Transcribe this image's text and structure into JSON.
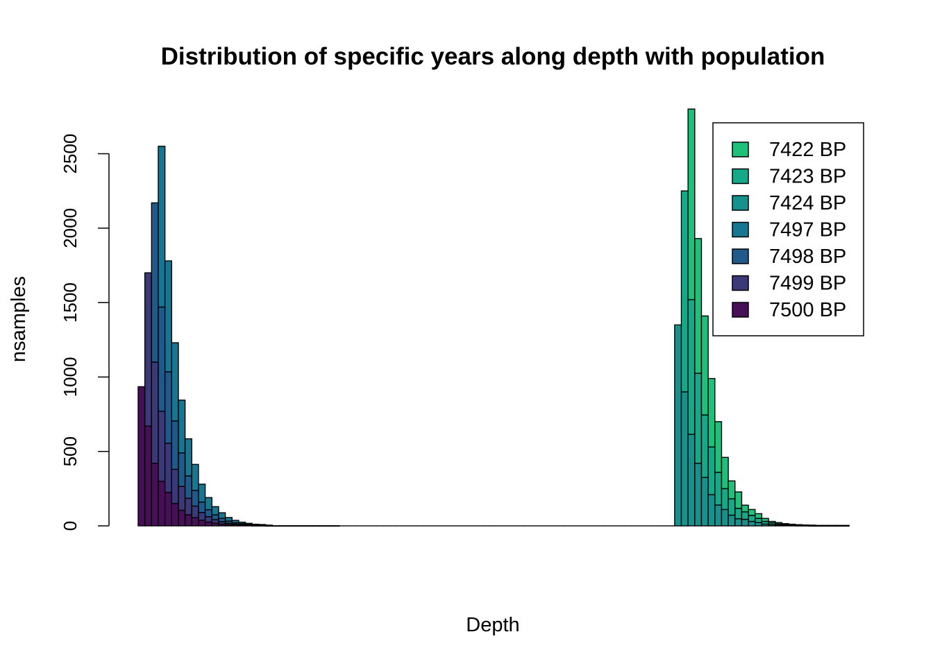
{
  "chart_data": {
    "type": "bar",
    "stacked": true,
    "title": "Distribution of specific years along depth with population",
    "xlabel": "Depth",
    "ylabel": "nsamples",
    "ylim": [
      0,
      2800
    ],
    "y_ticks": [
      0,
      500,
      1000,
      1500,
      2000,
      2500
    ],
    "y_tick_labels": [
      "0",
      "500",
      "1000",
      "1500",
      "2000",
      "2500"
    ],
    "legend_position": "top-right",
    "grid": false,
    "n_bins": 106,
    "legend": [
      {
        "name": "7422 BP",
        "color": "#1FC079"
      },
      {
        "name": "7423 BP",
        "color": "#15A98A"
      },
      {
        "name": "7424 BP",
        "color": "#18918C"
      },
      {
        "name": "7497 BP",
        "color": "#177793"
      },
      {
        "name": "7498 BP",
        "color": "#205A8A"
      },
      {
        "name": "7499 BP",
        "color": "#3C3979"
      },
      {
        "name": "7500 BP",
        "color": "#470F55"
      }
    ],
    "stack_order_bottom_to_top": [
      "7500 BP",
      "7499 BP",
      "7498 BP",
      "7497 BP",
      "7424 BP",
      "7423 BP",
      "7422 BP"
    ],
    "groups": [
      {
        "start_bin": 0,
        "series": [
          {
            "name": "7500 BP",
            "values": [
              935,
              670,
              420,
              300,
              225,
              150,
              105,
              75,
              55,
              38,
              26,
              18,
              12,
              8,
              5,
              4,
              3,
              2,
              2,
              1
            ]
          },
          {
            "name": "7499 BP",
            "values": [
              0,
              1030,
              680,
              470,
              330,
              230,
              160,
              110,
              78,
              52,
              36,
              24,
              16,
              10,
              7,
              5,
              3,
              2,
              2,
              1
            ]
          },
          {
            "name": "7498 BP",
            "values": [
              0,
              0,
              1070,
              700,
              480,
              325,
              225,
              150,
              105,
              70,
              46,
              32,
              22,
              14,
              9,
              6,
              4,
              3,
              2,
              1
            ]
          },
          {
            "name": "7497 BP",
            "values": [
              0,
              0,
              0,
              1080,
              745,
              525,
              355,
              250,
              175,
              120,
              82,
              55,
              38,
              24,
              16,
              10,
              7,
              4,
              3,
              2,
              1,
              1,
              1,
              1,
              1,
              1,
              1,
              1,
              1,
              1
            ]
          }
        ]
      },
      {
        "start_bin": 80,
        "series": [
          {
            "name": "7424 BP",
            "values": [
              1350,
              900,
              615,
              420,
              325,
              210,
              140,
              110,
              72,
              48,
              44,
              30,
              22,
              12,
              8,
              6,
              4,
              3,
              2,
              2,
              1,
              1,
              1,
              1,
              1,
              1
            ]
          },
          {
            "name": "7423 BP",
            "values": [
              0,
              1350,
              905,
              605,
              420,
              320,
              220,
              140,
              110,
              70,
              50,
              40,
              28,
              18,
              12,
              8,
              5,
              4,
              3,
              2,
              2,
              1,
              1,
              1,
              1,
              1
            ]
          },
          {
            "name": "7422 BP",
            "values": [
              0,
              0,
              1280,
              905,
              665,
              460,
              340,
              210,
              120,
              110,
              45,
              40,
              32,
              20,
              10,
              8,
              6,
              4,
              3,
              2,
              2,
              1,
              1,
              1,
              1,
              1
            ]
          }
        ]
      }
    ]
  }
}
